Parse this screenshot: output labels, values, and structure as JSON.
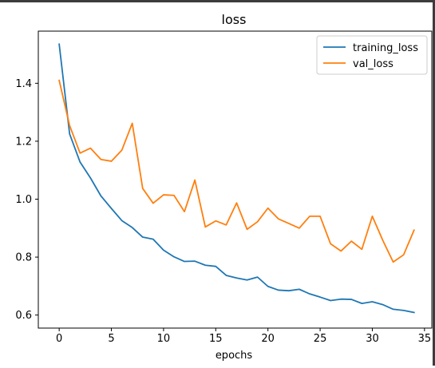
{
  "chart_data": {
    "type": "line",
    "title": "loss",
    "xlabel": "epochs",
    "ylabel": "",
    "xlim": [
      -2.0,
      35.7
    ],
    "ylim": [
      0.555,
      1.58
    ],
    "xticks": [
      0,
      5,
      10,
      15,
      20,
      25,
      30,
      35
    ],
    "yticks": [
      0.6,
      0.8,
      1.0,
      1.2,
      1.4
    ],
    "ytick_labels": [
      "0.6",
      "0.8",
      "1.0",
      "1.2",
      "1.4"
    ],
    "grid": false,
    "legend_position": "top-right",
    "x": [
      0,
      1,
      2,
      3,
      4,
      5,
      6,
      7,
      8,
      9,
      10,
      11,
      12,
      13,
      14,
      15,
      16,
      17,
      18,
      19,
      20,
      21,
      22,
      23,
      24,
      25,
      26,
      27,
      28,
      29,
      30,
      31,
      32,
      33,
      34
    ],
    "series": [
      {
        "name": "training_loss",
        "color": "#1f77b4",
        "values": [
          1.535,
          1.225,
          1.128,
          1.073,
          1.011,
          0.968,
          0.926,
          0.902,
          0.869,
          0.862,
          0.824,
          0.801,
          0.785,
          0.786,
          0.772,
          0.768,
          0.737,
          0.728,
          0.721,
          0.731,
          0.699,
          0.686,
          0.684,
          0.689,
          0.673,
          0.662,
          0.65,
          0.655,
          0.654,
          0.64,
          0.646,
          0.636,
          0.62,
          0.616,
          0.609
        ]
      },
      {
        "name": "val_loss",
        "color": "#ff7f0e",
        "values": [
          1.41,
          1.254,
          1.159,
          1.176,
          1.137,
          1.131,
          1.169,
          1.262,
          1.037,
          0.986,
          1.015,
          1.013,
          0.957,
          1.066,
          0.904,
          0.925,
          0.911,
          0.987,
          0.896,
          0.922,
          0.969,
          0.932,
          0.916,
          0.9,
          0.941,
          0.941,
          0.846,
          0.821,
          0.855,
          0.827,
          0.941,
          0.858,
          0.783,
          0.808,
          0.893
        ]
      }
    ]
  }
}
